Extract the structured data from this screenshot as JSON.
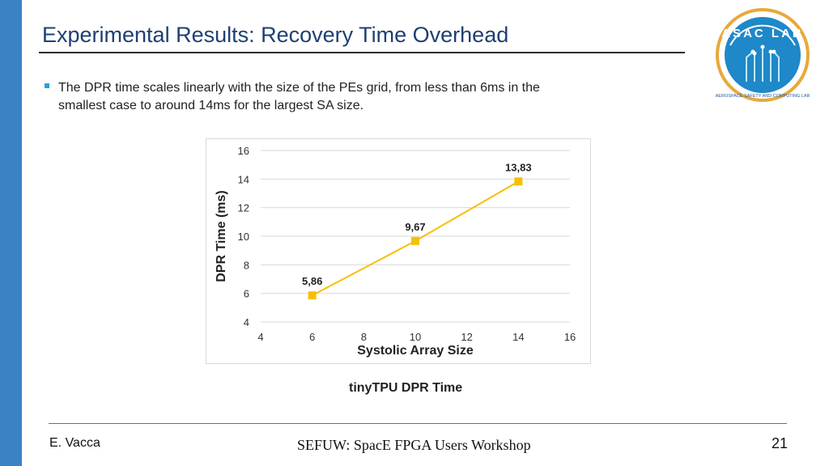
{
  "slide": {
    "title": "Experimental Results: Recovery Time Overhead",
    "bullet": "The DPR time scales linearly with the size of the PEs grid, from less than 6ms in the smallest case to around 14ms for the largest SA size.",
    "caption": "tinyTPU DPR Time",
    "footer_author": "E. Vacca",
    "footer_center": "SEFUW: SpacE FPGA Users Workshop",
    "page_number": "21",
    "logo": {
      "text": "ASAC LAB",
      "subtext": "AEROSPACE SAFETY AND COMPUTING LAB"
    },
    "colors": {
      "accent_bar": "#3b82c4",
      "title": "#1f3f73",
      "bullet": "#2aa0d8",
      "series": "#f5c000"
    }
  },
  "chart_data": {
    "type": "line",
    "title": "",
    "xlabel": "Systolic Array Size",
    "ylabel": "DPR Time (ms)",
    "xlim": [
      4,
      16
    ],
    "ylim": [
      4,
      16
    ],
    "x_ticks": [
      "4",
      "6",
      "8",
      "10",
      "12",
      "14",
      "16"
    ],
    "y_ticks": [
      "4",
      "6",
      "8",
      "10",
      "12",
      "14",
      "16"
    ],
    "grid": "horizontal",
    "x": [
      6,
      10,
      14
    ],
    "series": [
      {
        "values": [
          5.86,
          9.67,
          13.83
        ],
        "labels": [
          "5,86",
          "9,67",
          "13,83"
        ],
        "color": "#f5c000"
      }
    ]
  }
}
